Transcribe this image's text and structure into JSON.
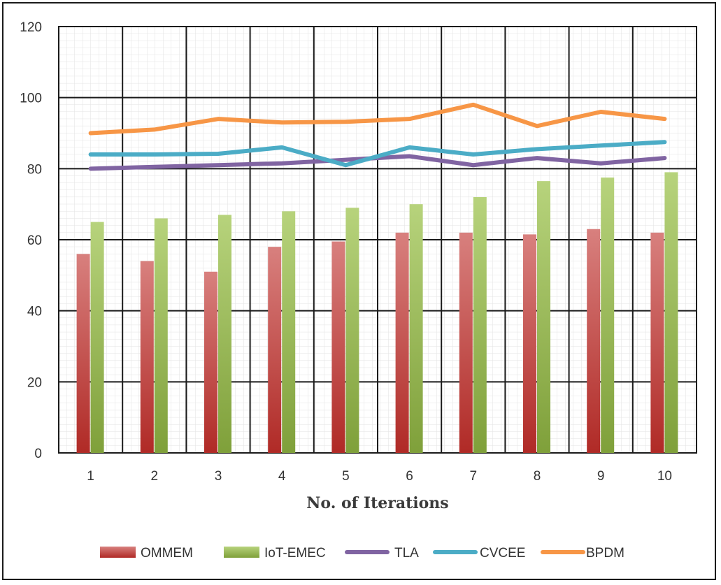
{
  "chart_data": {
    "type": "bar+line",
    "title": "",
    "xlabel": "No. of Iterations",
    "ylabel": "",
    "categories": [
      "1",
      "2",
      "3",
      "4",
      "5",
      "6",
      "7",
      "8",
      "9",
      "10"
    ],
    "ylim": [
      0,
      120
    ],
    "yticks": [
      0,
      20,
      40,
      60,
      80,
      100,
      120
    ],
    "grid": true,
    "legend_position": "bottom",
    "series": [
      {
        "name": "OMMEM",
        "kind": "bar",
        "color": "#c0504d",
        "values": [
          56,
          54,
          51,
          58,
          59.5,
          62,
          62,
          61.5,
          63,
          62
        ]
      },
      {
        "name": "IoT-EMEC",
        "kind": "bar",
        "color": "#9bbb59",
        "values": [
          65,
          66,
          67,
          68,
          69,
          70,
          72,
          76.5,
          77.5,
          79
        ]
      },
      {
        "name": "TLA",
        "kind": "line",
        "color": "#8064a2",
        "values": [
          80,
          80.5,
          81,
          81.5,
          82.5,
          83.5,
          81,
          83,
          81.5,
          83
        ]
      },
      {
        "name": "CVCEE",
        "kind": "line",
        "color": "#4bacc6",
        "values": [
          84,
          84,
          84.2,
          86,
          81,
          86,
          84,
          85.5,
          86.5,
          87.5
        ]
      },
      {
        "name": "BPDM",
        "kind": "line",
        "color": "#f79646",
        "values": [
          90,
          91,
          94,
          93,
          93.2,
          94,
          98,
          92,
          96,
          94
        ]
      }
    ]
  }
}
